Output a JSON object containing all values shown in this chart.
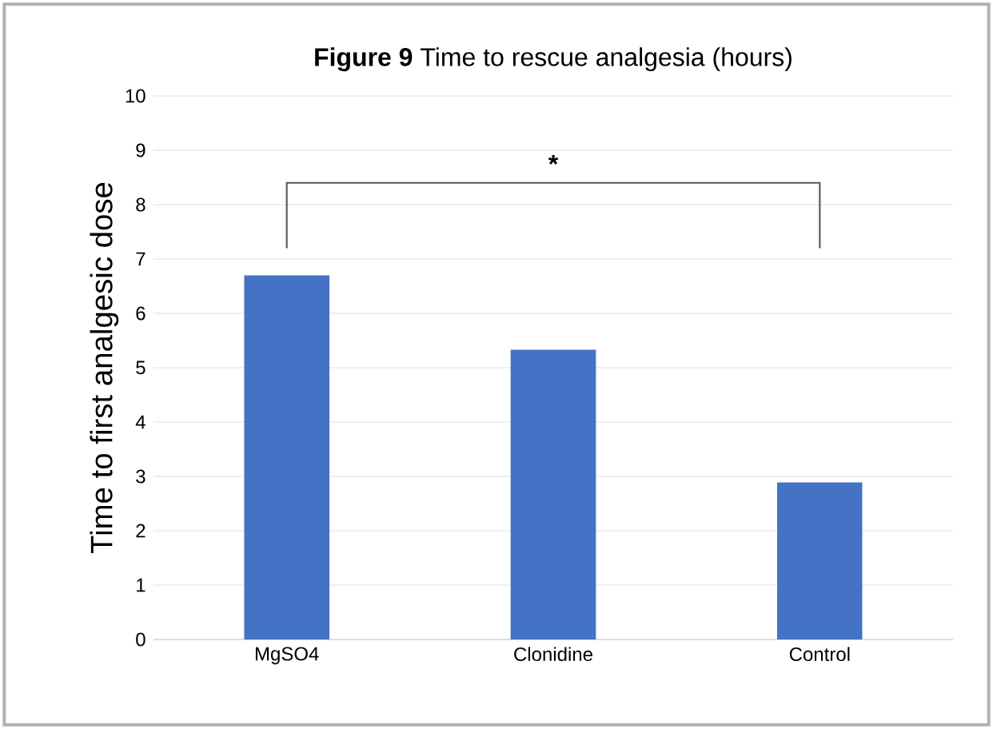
{
  "chart_data": {
    "type": "bar",
    "title": "**Figure 9**   Time to rescue analgesia (hours)",
    "ylabel": "Time to first analgesic dose",
    "categories": [
      "MgSO4",
      "Clonidine",
      "Control"
    ],
    "values": [
      6.7,
      5.33,
      2.89
    ],
    "color": "#4472c4",
    "ylim": [
      0,
      10
    ],
    "yticks": [
      0,
      1,
      2,
      3,
      4,
      5,
      6,
      7,
      8,
      9,
      10
    ],
    "grid": "y",
    "annotations": [
      "*"
    ]
  }
}
